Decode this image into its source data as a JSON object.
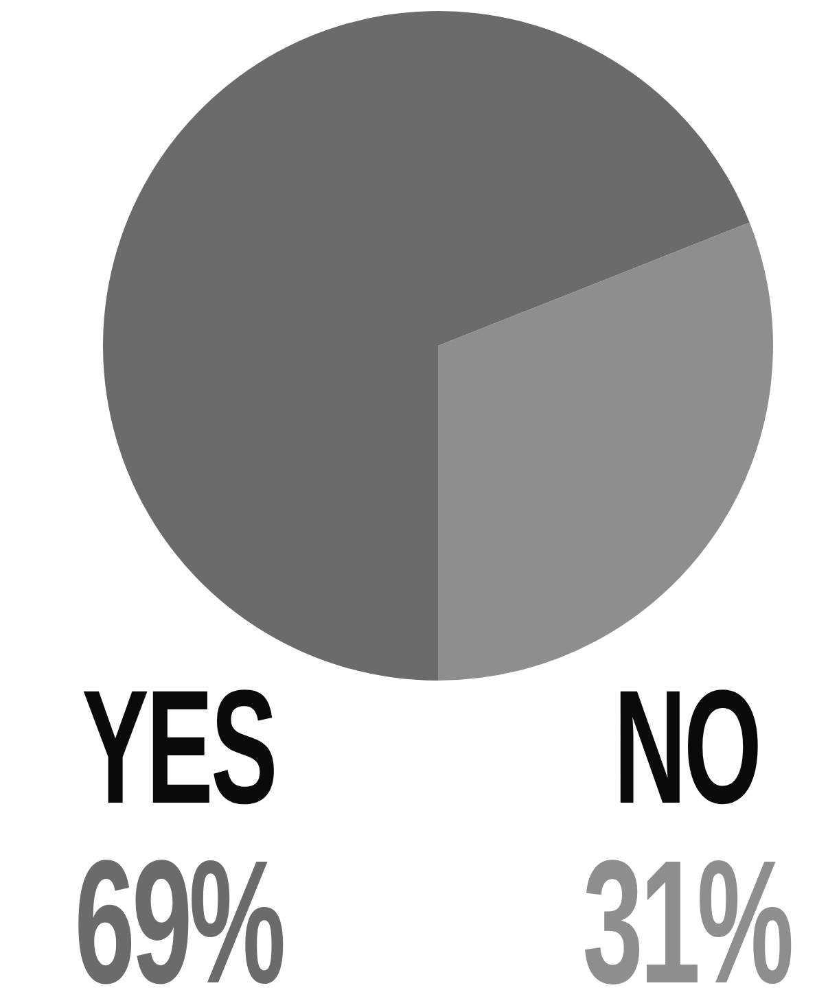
{
  "chart_data": {
    "type": "pie",
    "categories": [
      "YES",
      "NO"
    ],
    "values": [
      69,
      31
    ],
    "colors": [
      "#6b6b6b",
      "#8e8e8e"
    ],
    "value_labels": [
      "69%",
      "31%"
    ]
  }
}
